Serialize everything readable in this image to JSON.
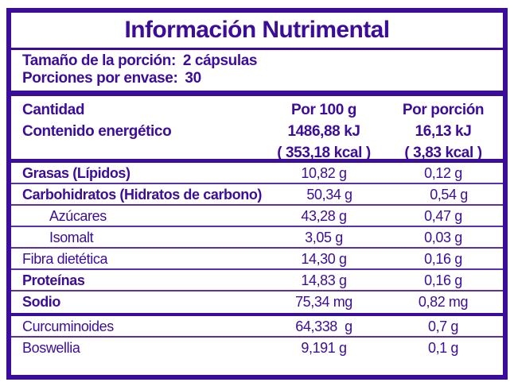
{
  "colors": {
    "accent_purple": "#3C0D9A",
    "background": "#FFFFFF"
  },
  "title": "Información Nutrimental",
  "serving": {
    "size_label": "Tamaño de la porción:",
    "size_value": "2 cápsulas",
    "per_container_label": "Porciones por envase:",
    "per_container_value": "30"
  },
  "header": {
    "amount_label": "Cantidad",
    "energy_label": "Contenido energético",
    "per_100g_label": "Por 100 g",
    "per_100g_kj": "1486,88 kJ",
    "per_100g_kcal": "( 353,18 kcal )",
    "per_portion_label": "Por porción",
    "per_portion_kj": "16,13 kJ",
    "per_portion_kcal": "( 3,83 kcal )"
  },
  "nutrients": [
    {
      "label": "Grasas (Lípidos)",
      "per_100g": "10,82 g",
      "per_portion": "0,12 g"
    },
    {
      "label": "Carbohidratos (Hidratos de carbono)",
      "per_100g": "50,34 g",
      "per_portion": "0,54 g"
    },
    {
      "label": "Azúcares",
      "per_100g": "43,28 g",
      "per_portion": "0,47 g"
    },
    {
      "label": "Isomalt",
      "per_100g": "3,05 g",
      "per_portion": "0,03 g"
    },
    {
      "label": "Fibra dietética",
      "per_100g": "14,30 g",
      "per_portion": "0,16 g"
    },
    {
      "label": "Proteínas",
      "per_100g": "14,83 g",
      "per_portion": "0,16 g"
    },
    {
      "label": "Sodio",
      "per_100g": "75,34 mg",
      "per_portion": "0,82 mg"
    }
  ],
  "extras": [
    {
      "label": "Curcuminoides",
      "per_100g": "64,338  g",
      "per_portion": "0,7 g"
    },
    {
      "label": "Boswellia",
      "per_100g": "9,191 g",
      "per_portion": "0,1 g"
    }
  ]
}
